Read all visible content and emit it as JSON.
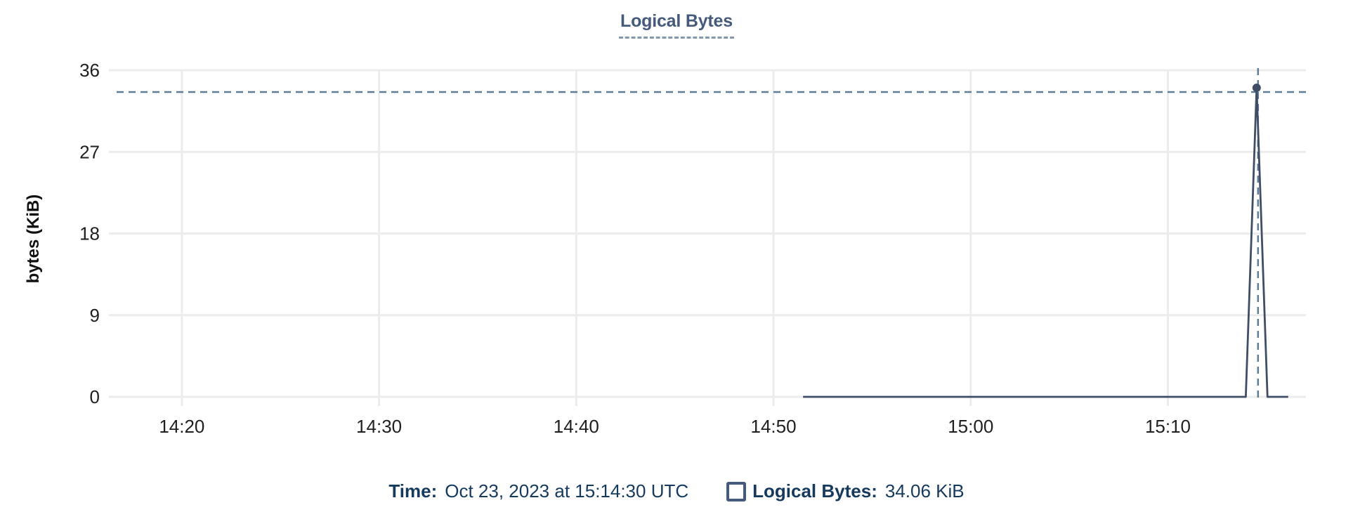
{
  "chart_data": {
    "type": "line",
    "title": "Logical Bytes",
    "ylabel": "bytes (KiB)",
    "ylim": [
      0,
      36
    ],
    "yticks": [
      36,
      27,
      18,
      9,
      0
    ],
    "grid": true,
    "x_axis": {
      "domain_minutes": [
        856.3,
        917.0
      ],
      "ticks": [
        {
          "label": "14:20",
          "minutes": 860
        },
        {
          "label": "14:30",
          "minutes": 870
        },
        {
          "label": "14:40",
          "minutes": 880
        },
        {
          "label": "14:50",
          "minutes": 890
        },
        {
          "label": "15:00",
          "minutes": 900
        },
        {
          "label": "15:10",
          "minutes": 910
        }
      ]
    },
    "series": [
      {
        "name": "Logical Bytes",
        "points_minutes_kib": [
          [
            891.5,
            0
          ],
          [
            913.95,
            0
          ],
          [
            914.5,
            34.06
          ],
          [
            915.05,
            0
          ],
          [
            916.1,
            0
          ]
        ]
      }
    ],
    "legend_position": "top"
  },
  "hover": {
    "point_minutes": 914.5,
    "point_value_kib": 34.06,
    "time_label": "Time:",
    "time_value": "Oct 23, 2023 at 15:14:30 UTC",
    "series_label": "Logical Bytes:",
    "series_value": "34.06 KiB"
  },
  "colors": {
    "title": "#465a7c",
    "title_underline": "#8397ae",
    "line": "#3f4e66",
    "dot": "#3f4e66",
    "crosshair": "#607d94",
    "gridline": "#ececec",
    "tick_text": "#1f1f1f",
    "tooltip_text": "#163a5e",
    "swatch_border": "#465a7c",
    "background": "#ffffff"
  }
}
